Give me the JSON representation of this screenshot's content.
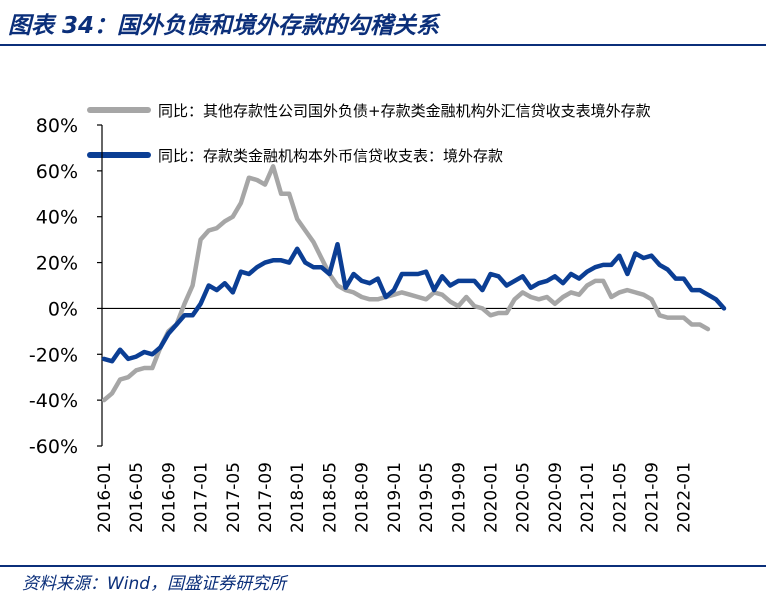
{
  "header": {
    "title": "图表 34：国外负债和境外存款的勾稽关系"
  },
  "footer": {
    "source": "资料来源：Wind，国盛证券研究所"
  },
  "colors": {
    "brand": "#0b2f7a",
    "series_gray": "#a6a6a6",
    "series_blue": "#0b3e94",
    "axis": "#000000"
  },
  "chart_data": {
    "type": "line",
    "title": "",
    "xlabel": "",
    "ylabel": "",
    "ylim": [
      -60,
      80
    ],
    "y_ticks": [
      "80%",
      "60%",
      "40%",
      "20%",
      "0%",
      "-20%",
      "-40%",
      "-60%"
    ],
    "y_tick_values": [
      80,
      60,
      40,
      20,
      0,
      -20,
      -40,
      -60
    ],
    "x_start": "2016-01",
    "x_tick_labels": [
      "2016-01",
      "2016-05",
      "2016-09",
      "2017-01",
      "2017-05",
      "2017-09",
      "2018-01",
      "2018-05",
      "2018-09",
      "2019-01",
      "2019-05",
      "2019-09",
      "2020-01",
      "2020-05",
      "2020-09",
      "2021-01",
      "2021-05",
      "2021-09",
      "2022-01"
    ],
    "legend_position": "top",
    "series": [
      {
        "name": "同比：其他存款性公司国外负债+存款类金融机构外汇信贷收支表境外存款",
        "color": "#a6a6a6",
        "values": [
          -40,
          -37,
          -31,
          -30,
          -27,
          -26,
          -26,
          -17,
          -10,
          -7,
          2,
          10,
          30,
          34,
          35,
          38,
          40,
          46,
          57,
          56,
          54,
          62,
          50,
          50,
          39,
          34,
          29,
          22,
          15,
          10,
          8,
          7,
          5,
          4,
          4,
          5,
          6,
          7,
          6,
          5,
          4,
          7,
          6,
          3,
          1,
          5,
          1,
          0,
          -3,
          -2,
          -2,
          4,
          7,
          5,
          4,
          5,
          2,
          5,
          7,
          6,
          10,
          12,
          12,
          5,
          7,
          8,
          7,
          6,
          4,
          -3,
          -4,
          -4,
          -4,
          -7,
          -7,
          -9
        ]
      },
      {
        "name": "同比：存款类金融机构本外币信贷收支表：境外存款",
        "color": "#0b3e94",
        "values": [
          -22,
          -23,
          -18,
          -22,
          -21,
          -19,
          -20,
          -17,
          -11,
          -7,
          -3,
          -3,
          2,
          10,
          8,
          11,
          7,
          16,
          15,
          18,
          20,
          21,
          21,
          20,
          26,
          20,
          18,
          18,
          15,
          28,
          9,
          15,
          12,
          11,
          13,
          5,
          8,
          15,
          15,
          15,
          16,
          8,
          14,
          10,
          12,
          12,
          12,
          8,
          15,
          14,
          10,
          12,
          14,
          9,
          11,
          12,
          14,
          11,
          15,
          13,
          16,
          18,
          19,
          19,
          23,
          15,
          24,
          22,
          23,
          19,
          17,
          13,
          13,
          8,
          8,
          6,
          4,
          0
        ]
      }
    ]
  }
}
